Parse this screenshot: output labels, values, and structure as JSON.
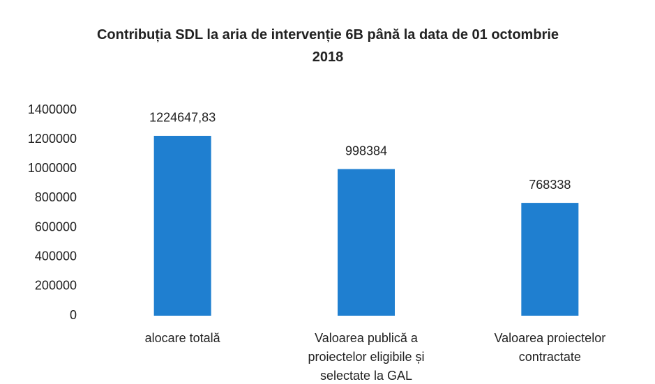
{
  "chart_data": {
    "type": "bar",
    "title": "Contribuția SDL la aria de intervenție 6B până la data de 01 octombrie 2018",
    "categories": [
      "alocare totală",
      "Valoarea publică a proiectelor eligibile și selectate la GAL",
      "Valoarea proiectelor contractate"
    ],
    "values": [
      1224647.83,
      998384,
      768338
    ],
    "value_labels": [
      "1224647,83",
      "998384",
      "768338"
    ],
    "color": "#1f7fd0",
    "ylim": [
      0,
      1400000
    ],
    "yticks": [
      0,
      200000,
      400000,
      600000,
      800000,
      1000000,
      1200000,
      1400000
    ],
    "grid": false
  }
}
